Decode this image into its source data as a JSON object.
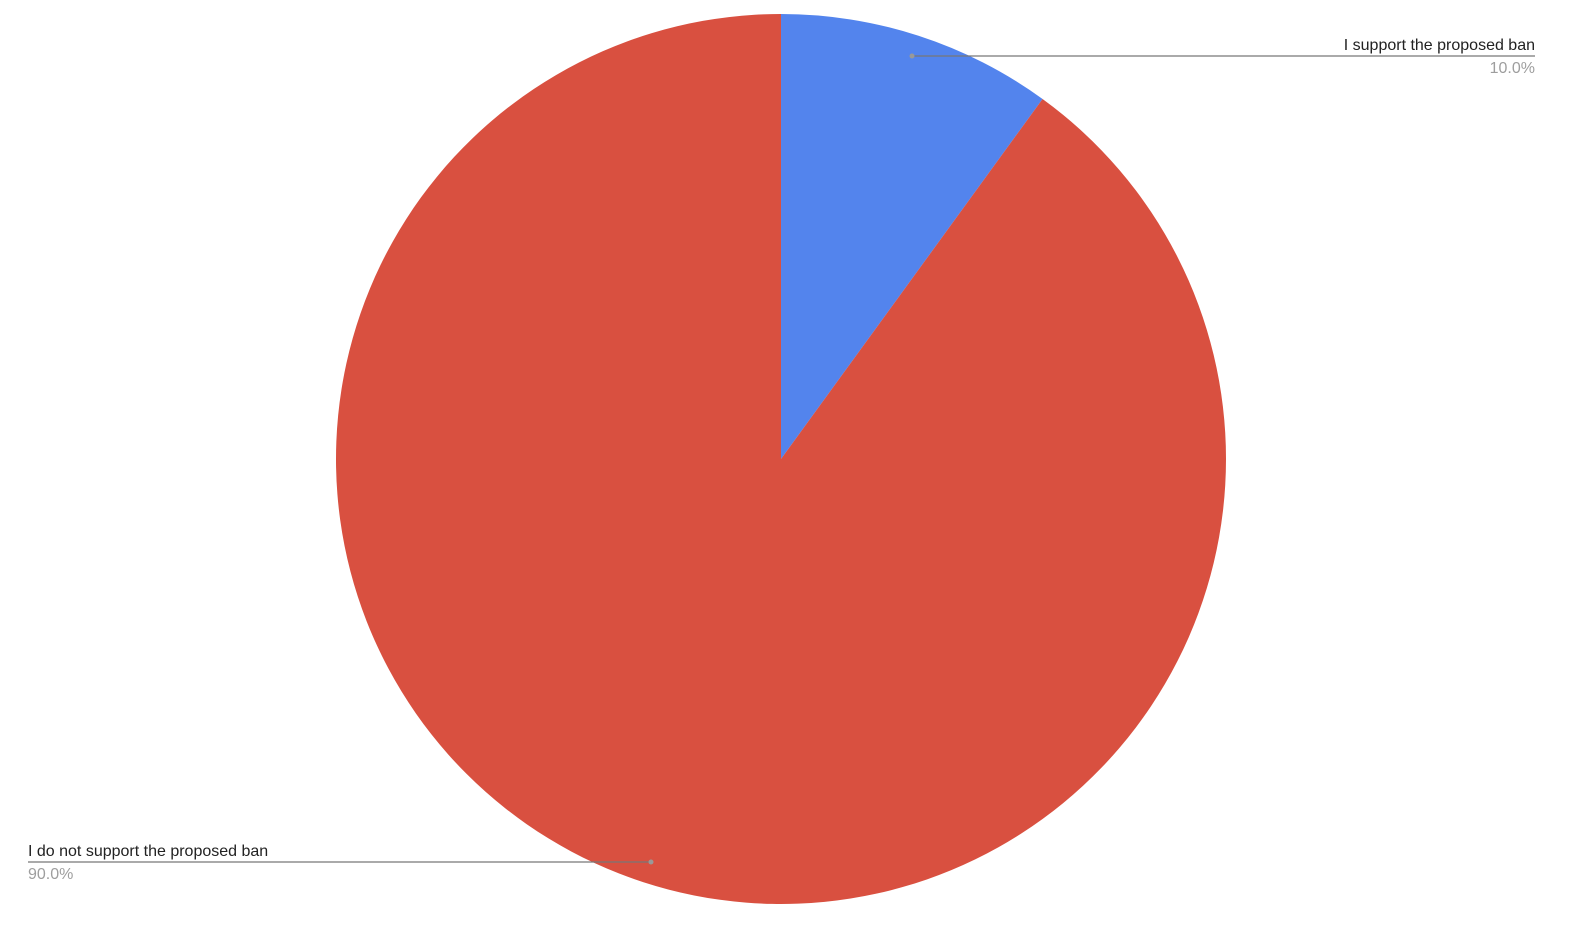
{
  "chart_data": {
    "type": "pie",
    "start_angle": "top, clockwise",
    "slices": [
      {
        "label": "I support the proposed ban",
        "value": 10.0,
        "percent_label": "10.0%",
        "color": "#5384ed"
      },
      {
        "label": "I do not support the proposed ban",
        "value": 90.0,
        "percent_label": "90.0%",
        "color": "#d95040"
      }
    ],
    "legend": "none (leader-line labels)"
  }
}
